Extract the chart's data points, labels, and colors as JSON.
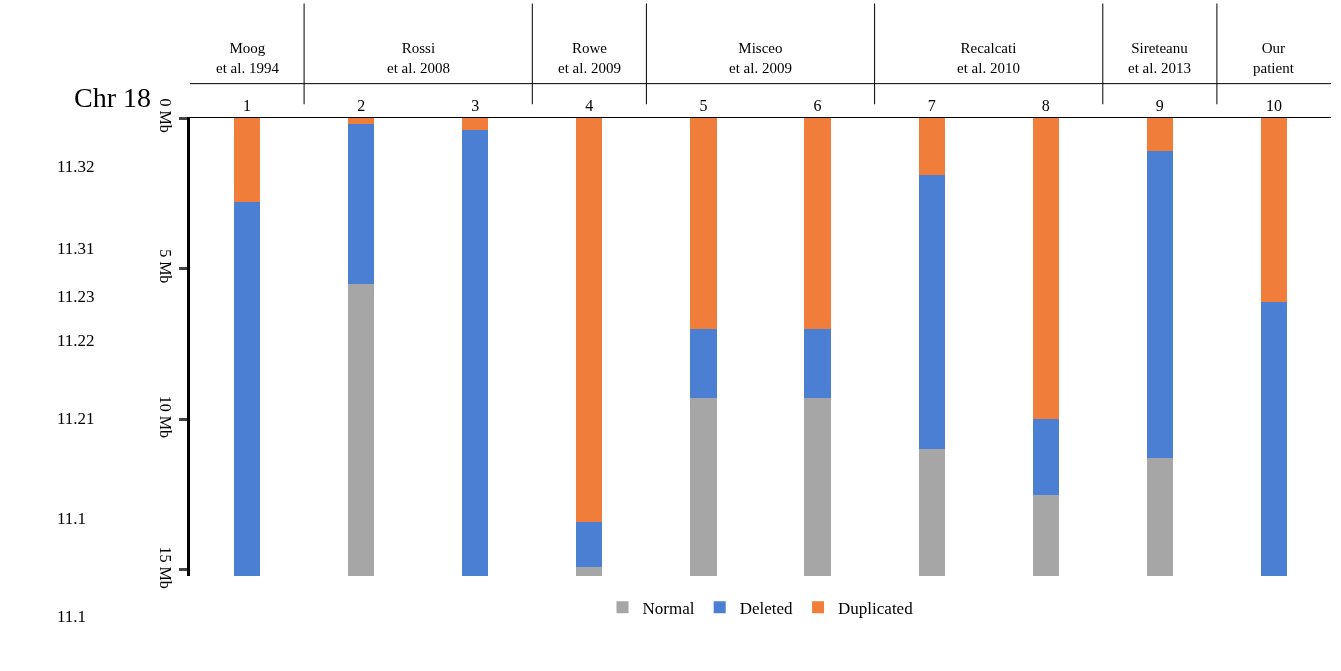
{
  "chart_data": {
    "type": "bar",
    "stacked": true,
    "categories": [
      "1",
      "2",
      "3",
      "4",
      "5",
      "6",
      "7",
      "8",
      "9",
      "10"
    ],
    "series": [
      {
        "name": "Duplicated",
        "color": "#f07d3a",
        "values": [
          2.8,
          0.2,
          0.4,
          13.4,
          7.0,
          7.0,
          1.9,
          10.0,
          1.1,
          6.1
        ]
      },
      {
        "name": "Deleted",
        "color": "#4a7fd4",
        "values": [
          12.4,
          5.3,
          14.8,
          1.5,
          2.3,
          2.3,
          9.1,
          2.5,
          10.2,
          9.1
        ]
      },
      {
        "name": "Normal",
        "color": "#a6a6a6",
        "values": [
          0,
          9.7,
          0,
          0.3,
          5.9,
          5.9,
          4.2,
          2.7,
          3.9,
          0
        ]
      }
    ],
    "ylim": [
      15.2,
      0
    ],
    "yticks": [
      {
        "value": 0,
        "label": "0 Mb"
      },
      {
        "value": 5,
        "label": "5 Mb"
      },
      {
        "value": 10,
        "label": "10 Mb"
      },
      {
        "value": 15,
        "label": "15 Mb"
      }
    ],
    "legend": "bottom",
    "annotations": [
      "Moog\net al. 1994",
      "Rossi\net al. 2008",
      "Rowe\net al. 2009",
      "Misceo\net al. 2009",
      "Recalcati\net al. 2010",
      "Sireteanu\net al. 2013",
      "Our\npatient",
      "Chr 18",
      "11.32",
      "11.31",
      "11.23",
      "11.22",
      "11.21",
      "11.1",
      "11.1"
    ]
  }
}
